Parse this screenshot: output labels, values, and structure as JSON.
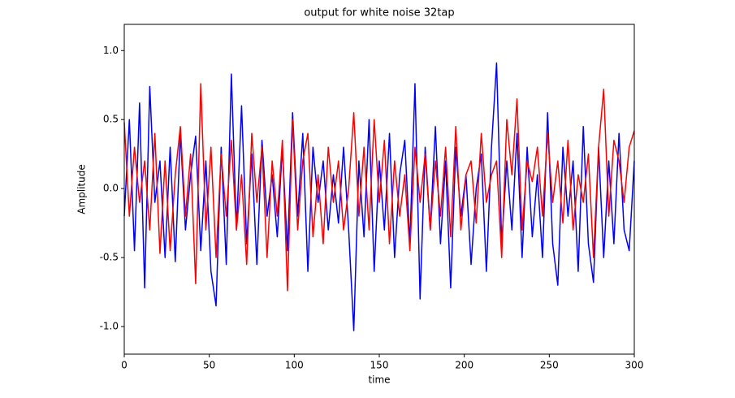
{
  "chart_data": {
    "type": "line",
    "title": "output for white noise 32tap",
    "xlabel": "time",
    "ylabel": "Amplitude",
    "x": [
      0,
      3,
      6,
      9,
      12,
      15,
      18,
      21,
      24,
      27,
      30,
      33,
      36,
      39,
      42,
      45,
      48,
      51,
      54,
      57,
      60,
      63,
      66,
      69,
      72,
      75,
      78,
      81,
      84,
      87,
      90,
      93,
      96,
      99,
      102,
      105,
      108,
      111,
      114,
      117,
      120,
      123,
      126,
      129,
      132,
      135,
      138,
      141,
      144,
      147,
      150,
      153,
      156,
      159,
      162,
      165,
      168,
      171,
      174,
      177,
      180,
      183,
      186,
      189,
      192,
      195,
      198,
      201,
      204,
      207,
      210,
      213,
      216,
      219,
      222,
      225,
      228,
      231,
      234,
      237,
      240,
      243,
      246,
      249,
      252,
      255,
      258,
      261,
      264,
      267,
      270,
      273,
      276,
      279,
      282,
      285,
      288,
      291,
      294,
      297,
      300
    ],
    "series": [
      {
        "name": "blue",
        "color": "#0000ff",
        "values": [
          -0.2,
          0.5,
          -0.45,
          0.62,
          -0.72,
          0.74,
          -0.1,
          0.2,
          -0.5,
          0.3,
          -0.53,
          0.4,
          -0.3,
          0.1,
          0.38,
          -0.45,
          0.2,
          -0.6,
          -0.85,
          0.3,
          -0.55,
          0.83,
          -0.3,
          0.6,
          -0.4,
          0.25,
          -0.55,
          0.35,
          -0.2,
          0.1,
          -0.35,
          0.3,
          -0.45,
          0.55,
          -0.2,
          0.4,
          -0.6,
          0.3,
          -0.1,
          0.2,
          -0.3,
          0.1,
          -0.25,
          0.3,
          -0.3,
          -1.03,
          0.2,
          -0.35,
          0.5,
          -0.6,
          0.2,
          -0.3,
          0.4,
          -0.5,
          0.1,
          0.35,
          -0.4,
          0.76,
          -0.8,
          0.3,
          -0.3,
          0.45,
          -0.4,
          0.2,
          -0.72,
          0.3,
          -0.2,
          0.1,
          -0.55,
          0.0,
          0.25,
          -0.6,
          0.3,
          0.91,
          -0.4,
          0.2,
          -0.3,
          0.4,
          -0.5,
          0.3,
          -0.35,
          0.1,
          -0.5,
          0.55,
          -0.4,
          -0.7,
          0.3,
          -0.2,
          0.2,
          -0.6,
          0.45,
          -0.4,
          -0.68,
          0.3,
          -0.5,
          0.2,
          -0.4,
          0.4,
          -0.3,
          -0.45,
          0.2
        ]
      },
      {
        "name": "red",
        "color": "#ff0000",
        "values": [
          0.48,
          -0.2,
          0.3,
          -0.1,
          0.2,
          -0.3,
          0.4,
          -0.47,
          0.2,
          -0.45,
          0.1,
          0.45,
          -0.2,
          0.25,
          -0.69,
          0.76,
          -0.3,
          0.3,
          -0.5,
          0.25,
          -0.2,
          0.35,
          -0.3,
          0.1,
          -0.55,
          0.4,
          -0.1,
          0.3,
          -0.5,
          0.2,
          -0.2,
          0.35,
          -0.74,
          0.5,
          -0.3,
          0.2,
          0.4,
          -0.35,
          0.1,
          -0.4,
          0.3,
          -0.1,
          0.2,
          -0.3,
          0.0,
          0.55,
          -0.2,
          0.3,
          -0.3,
          0.5,
          -0.1,
          0.35,
          -0.4,
          0.2,
          -0.2,
          0.1,
          -0.45,
          0.3,
          -0.1,
          0.25,
          -0.3,
          0.2,
          -0.2,
          0.3,
          -0.35,
          0.45,
          -0.3,
          0.1,
          0.2,
          -0.25,
          0.4,
          -0.1,
          0.1,
          0.2,
          -0.5,
          0.5,
          0.1,
          0.65,
          -0.3,
          0.2,
          0.05,
          0.3,
          -0.2,
          0.4,
          -0.1,
          0.2,
          -0.25,
          0.35,
          -0.3,
          0.1,
          -0.1,
          0.25,
          -0.5,
          0.3,
          0.72,
          -0.2,
          0.35,
          0.2,
          -0.1,
          0.3,
          0.42
        ]
      }
    ],
    "xlim": [
      0,
      300
    ],
    "ylim": [
      -1.2,
      1.19
    ],
    "xticks": [
      0,
      50,
      100,
      150,
      200,
      250,
      300
    ],
    "yticks": [
      {
        "value": -1.0,
        "label": "-1.0"
      },
      -0.5,
      {
        "value": 0.0,
        "label": "0.0"
      },
      0.5,
      {
        "value": 1.0,
        "label": "1.0"
      }
    ],
    "grid": false
  }
}
